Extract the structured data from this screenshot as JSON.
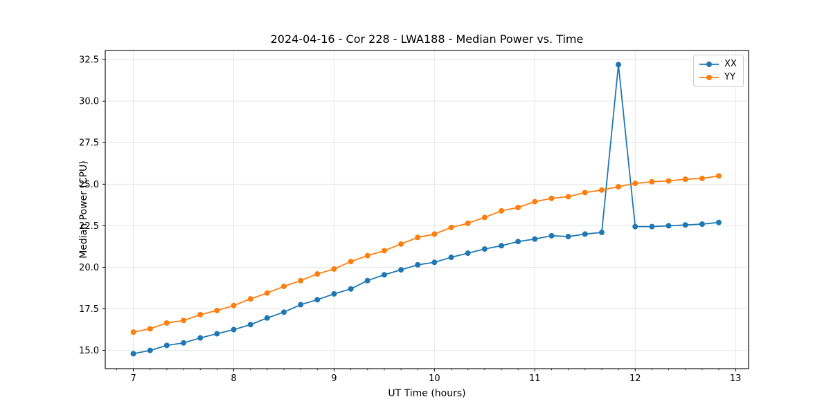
{
  "title": "2024-04-16 - Cor 228 - LWA188 - Median Power vs. Time",
  "chart_data": {
    "type": "line",
    "title": "2024-04-16 - Cor 228 - LWA188 - Median Power vs. Time",
    "xlabel": "UT Time (hours)",
    "ylabel": "Median Power (CPU)",
    "xlim": [
      6.72,
      13.13
    ],
    "ylim": [
      13.9,
      33.05
    ],
    "grid": true,
    "legend_position": "upper right",
    "x_ticks": [
      7,
      8,
      9,
      10,
      11,
      12,
      13
    ],
    "x_tick_labels": [
      "7",
      "8",
      "9",
      "10",
      "11",
      "12",
      "13"
    ],
    "x_minor_step": 0.16667,
    "y_ticks": [
      15.0,
      17.5,
      20.0,
      22.5,
      25.0,
      27.5,
      30.0,
      32.5
    ],
    "y_tick_labels": [
      "15.0",
      "17.5",
      "20.0",
      "22.5",
      "25.0",
      "27.5",
      "30.0",
      "32.5"
    ],
    "x": [
      7.0,
      7.167,
      7.333,
      7.5,
      7.667,
      7.833,
      8.0,
      8.167,
      8.333,
      8.5,
      8.667,
      8.833,
      9.0,
      9.167,
      9.333,
      9.5,
      9.667,
      9.833,
      10.0,
      10.167,
      10.333,
      10.5,
      10.667,
      10.833,
      11.0,
      11.167,
      11.333,
      11.5,
      11.667,
      11.833,
      12.0,
      12.167,
      12.333,
      12.5,
      12.667,
      12.833
    ],
    "series": [
      {
        "name": "XX",
        "color": "#1f77b4",
        "values": [
          14.8,
          15.0,
          15.3,
          15.45,
          15.75,
          16.0,
          16.25,
          16.55,
          16.95,
          17.3,
          17.75,
          18.05,
          18.4,
          18.7,
          19.2,
          19.55,
          19.85,
          20.15,
          20.3,
          20.6,
          20.85,
          21.1,
          21.3,
          21.55,
          21.7,
          21.9,
          21.85,
          22.0,
          22.1,
          32.2,
          22.45,
          22.45,
          22.5,
          22.55,
          22.6,
          22.7
        ]
      },
      {
        "name": "YY",
        "color": "#ff7f0e",
        "values": [
          16.1,
          16.3,
          16.65,
          16.8,
          17.15,
          17.4,
          17.7,
          18.1,
          18.45,
          18.85,
          19.2,
          19.6,
          19.9,
          20.35,
          20.7,
          21.0,
          21.4,
          21.8,
          22.0,
          22.4,
          22.65,
          23.0,
          23.4,
          23.6,
          23.95,
          24.15,
          24.25,
          24.5,
          24.65,
          24.85,
          25.05,
          25.15,
          25.2,
          25.3,
          25.35,
          25.5
        ]
      }
    ],
    "style": {
      "grid_color": "#e6e6e6",
      "spine_color": "#000000",
      "tick_color": "#000000",
      "marker_radius": 4,
      "line_width": 1.8
    }
  }
}
